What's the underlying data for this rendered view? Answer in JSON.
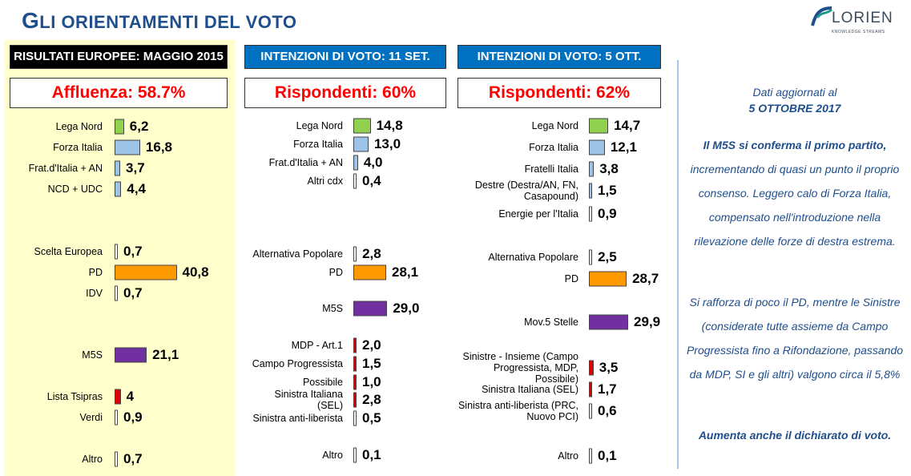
{
  "header": {
    "title_first": "G",
    "title_rest": "LI ORIENTAMENTI DEL VOTO",
    "logo_text": "LORIEN",
    "logo_tagline": "KNOWLEDGE STREAMS"
  },
  "colors": {
    "green": "#92d050",
    "blue": "#9dc3e6",
    "orange": "#ff9900",
    "purple": "#7030a0",
    "red": "#e00000",
    "white": "#ffffff"
  },
  "chart_data": [
    {
      "type": "bar",
      "title": "RISULTATI EUROPEE:  MAGGIO 2015",
      "subtitle": "Affluenza: 58.7%",
      "categories": [
        "Lega Nord",
        "Forza Italia",
        "Frat.d'Italia + AN",
        "NCD + UDC",
        "Scelta Europea",
        "PD",
        "IDV",
        "M5S",
        "Lista Tsipras",
        "Verdi",
        "Altro"
      ],
      "values": [
        6.2,
        16.8,
        3.7,
        4.4,
        0.7,
        40.8,
        0.7,
        21.1,
        4,
        0.9,
        0.7
      ],
      "labels": [
        "6,2",
        "16,8",
        "3,7",
        "4,4",
        "0,7",
        "40,8",
        "0,7",
        "21,1",
        "4",
        "0,9",
        "0,7"
      ],
      "colors": [
        "green",
        "blue",
        "blue",
        "blue",
        "white",
        "orange",
        "white",
        "purple",
        "red",
        "white",
        "white"
      ]
    },
    {
      "type": "bar",
      "title": "INTENZIONI DI VOTO: 11 SET.",
      "subtitle": "Rispondenti: 60%",
      "categories": [
        "Lega Nord",
        "Forza Italia",
        "Frat.d'Italia + AN",
        "Altri cdx",
        "Alternativa Popolare",
        "PD",
        "M5S",
        "MDP - Art.1",
        "Campo Progressista",
        "Possibile",
        "Sinistra Italiana (SEL)",
        "Sinistra anti-liberista",
        "Altro"
      ],
      "values": [
        14.8,
        13.0,
        4.0,
        0.4,
        2.8,
        28.1,
        29.0,
        2.0,
        1.5,
        1.0,
        2.8,
        0.5,
        0.1
      ],
      "labels": [
        "14,8",
        "13,0",
        "4,0",
        "0,4",
        "2,8",
        "28,1",
        "29,0",
        "2,0",
        "1,5",
        "1,0",
        "2,8",
        "0,5",
        "0,1"
      ],
      "colors": [
        "green",
        "blue",
        "blue",
        "white",
        "white",
        "orange",
        "purple",
        "red",
        "red",
        "red",
        "red",
        "white",
        "white"
      ]
    },
    {
      "type": "bar",
      "title": "INTENZIONI DI VOTO: 5 OTT.",
      "subtitle": "Rispondenti: 62%",
      "categories": [
        "Lega Nord",
        "Forza Italia",
        "Fratelli Italia",
        "Destre (Destra/AN, FN, Casapound)",
        "Energie per l'Italia",
        "Alternativa Popolare",
        "PD",
        "Mov.5 Stelle",
        "Sinistre - Insieme (Campo Progressista, MDP, Possibile)",
        "Sinistra Italiana (SEL)",
        "Sinistra anti-liberista (PRC, Nuovo PCI)",
        "Altro"
      ],
      "values": [
        14.7,
        12.1,
        3.8,
        1.5,
        0.9,
        2.5,
        28.7,
        29.9,
        3.5,
        1.7,
        0.6,
        0.1
      ],
      "labels": [
        "14,7",
        "12,1",
        "3,8",
        "1,5",
        "0,9",
        "2,5",
        "28,7",
        "29,9",
        "3,5",
        "1,7",
        "0,6",
        "0,1"
      ],
      "colors": [
        "green",
        "blue",
        "blue",
        "blue",
        "white",
        "white",
        "orange",
        "purple",
        "red",
        "red",
        "white",
        "white"
      ]
    }
  ],
  "notes": {
    "date_intro": "Dati aggiornati al",
    "date": "5 OTTOBRE 2017",
    "p1": "Il M5S si conferma il primo partito, incrementando di quasi un punto il proprio consenso. Leggero calo di Forza Italia, compensato nell'introduzione nella rilevazione delle forze di destra estrema.",
    "p1_bold": "Il M5S si conferma il primo partito,",
    "p1_rest": " incrementando di quasi un punto il proprio consenso. Leggero calo di Forza Italia, compensato nell'introduzione nella rilevazione delle forze di destra estrema.",
    "p2": "Si rafforza di poco il PD, mentre le Sinistre (considerate tutte assieme da Campo Progressista fino a Rifondazione, passando da MDP, SI e gli altri) valgono circa il 5,8%",
    "p3": "Aumenta anche il dichiarato di voto."
  }
}
